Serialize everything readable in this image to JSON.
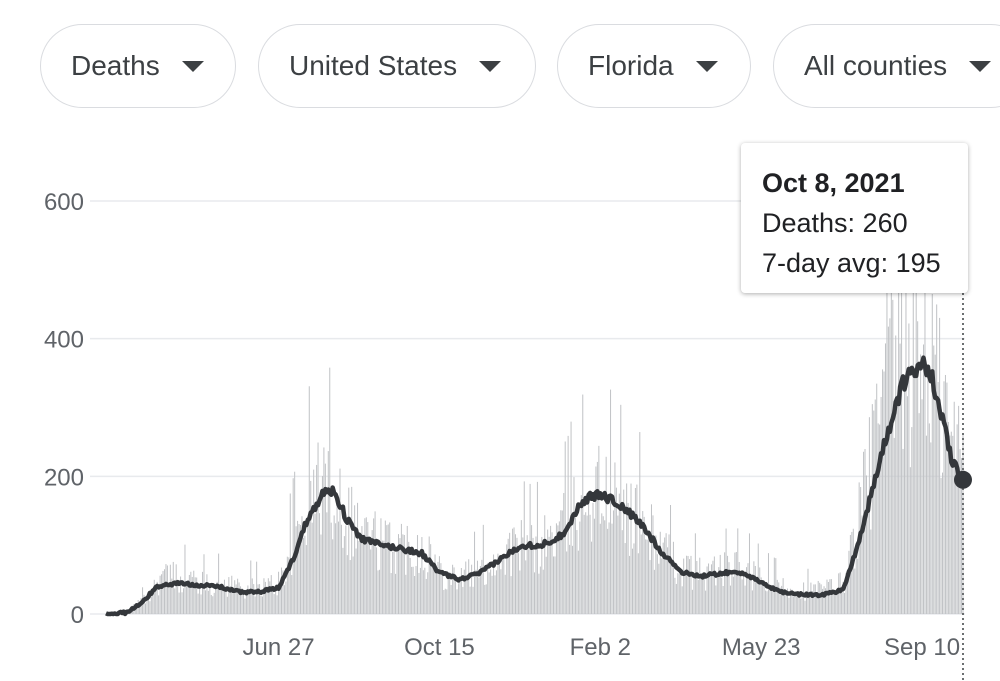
{
  "filters": {
    "metric": "Deaths",
    "country": "United States",
    "state": "Florida",
    "county": "All counties"
  },
  "tooltip": {
    "date": "Oct 8, 2021",
    "deaths_line": "Deaths: 260",
    "avg_line": "7-day avg: 195"
  },
  "colors": {
    "bars": "#c1c3c6",
    "line": "#34373b",
    "gridline": "#e8eaed",
    "axis_text": "#5f6368"
  },
  "chart_data": {
    "type": "bar",
    "title": "",
    "xlabel": "",
    "ylabel": "",
    "ylim": [
      0,
      600
    ],
    "y_ticks": [
      0,
      200,
      400,
      600
    ],
    "x_tick_labels": [
      {
        "label": "Jun 27",
        "date": "2020-06-27"
      },
      {
        "label": "Oct 15",
        "date": "2020-10-15"
      },
      {
        "label": "Feb 2",
        "date": "2021-02-02"
      },
      {
        "label": "May 23",
        "date": "2021-05-23"
      },
      {
        "label": "Sep 10",
        "date": "2021-09-10"
      }
    ],
    "start_date": "2020-03-01",
    "end_date": "2021-10-08",
    "series": [
      {
        "name": "Deaths",
        "kind": "bar",
        "note": "daily values, weekly anchors (date, approx. deaths)",
        "anchors": [
          [
            "2020-03-01",
            0
          ],
          [
            "2020-03-15",
            3
          ],
          [
            "2020-03-29",
            25
          ],
          [
            "2020-04-08",
            55
          ],
          [
            "2020-04-22",
            55
          ],
          [
            "2020-05-06",
            45
          ],
          [
            "2020-05-20",
            45
          ],
          [
            "2020-06-03",
            40
          ],
          [
            "2020-06-17",
            40
          ],
          [
            "2020-06-27",
            45
          ],
          [
            "2020-07-08",
            110
          ],
          [
            "2020-07-18",
            170
          ],
          [
            "2020-07-28",
            195
          ],
          [
            "2020-08-05",
            185
          ],
          [
            "2020-08-13",
            145
          ],
          [
            "2020-08-24",
            120
          ],
          [
            "2020-09-07",
            100
          ],
          [
            "2020-09-21",
            100
          ],
          [
            "2020-10-05",
            95
          ],
          [
            "2020-10-15",
            65
          ],
          [
            "2020-10-29",
            55
          ],
          [
            "2020-11-12",
            65
          ],
          [
            "2020-11-26",
            85
          ],
          [
            "2020-12-10",
            100
          ],
          [
            "2020-12-24",
            100
          ],
          [
            "2021-01-07",
            125
          ],
          [
            "2021-01-21",
            170
          ],
          [
            "2021-02-02",
            180
          ],
          [
            "2021-02-16",
            160
          ],
          [
            "2021-03-02",
            135
          ],
          [
            "2021-03-16",
            95
          ],
          [
            "2021-03-30",
            65
          ],
          [
            "2021-04-13",
            60
          ],
          [
            "2021-04-27",
            65
          ],
          [
            "2021-05-11",
            65
          ],
          [
            "2021-05-23",
            50
          ],
          [
            "2021-06-06",
            40
          ],
          [
            "2021-06-20",
            35
          ],
          [
            "2021-07-04",
            35
          ],
          [
            "2021-07-18",
            45
          ],
          [
            "2021-07-28",
            130
          ],
          [
            "2021-08-07",
            230
          ],
          [
            "2021-08-17",
            330
          ],
          [
            "2021-08-27",
            380
          ],
          [
            "2021-09-04",
            370
          ],
          [
            "2021-09-10",
            400
          ],
          [
            "2021-09-17",
            360
          ],
          [
            "2021-09-24",
            300
          ],
          [
            "2021-10-01",
            240
          ],
          [
            "2021-10-08",
            260
          ]
        ]
      },
      {
        "name": "7-day avg",
        "kind": "line",
        "note": "anchor points (date, approx. 7-day average)",
        "anchors": [
          [
            "2020-03-01",
            0
          ],
          [
            "2020-03-15",
            2
          ],
          [
            "2020-03-25",
            15
          ],
          [
            "2020-04-05",
            40
          ],
          [
            "2020-04-19",
            45
          ],
          [
            "2020-05-03",
            42
          ],
          [
            "2020-05-17",
            40
          ],
          [
            "2020-05-31",
            32
          ],
          [
            "2020-06-14",
            32
          ],
          [
            "2020-06-27",
            38
          ],
          [
            "2020-07-07",
            80
          ],
          [
            "2020-07-17",
            140
          ],
          [
            "2020-07-27",
            175
          ],
          [
            "2020-08-04",
            180
          ],
          [
            "2020-08-12",
            140
          ],
          [
            "2020-08-22",
            110
          ],
          [
            "2020-09-05",
            100
          ],
          [
            "2020-09-19",
            95
          ],
          [
            "2020-10-03",
            88
          ],
          [
            "2020-10-15",
            60
          ],
          [
            "2020-10-29",
            50
          ],
          [
            "2020-11-12",
            60
          ],
          [
            "2020-11-26",
            80
          ],
          [
            "2020-12-10",
            100
          ],
          [
            "2020-12-24",
            100
          ],
          [
            "2021-01-07",
            115
          ],
          [
            "2021-01-21",
            165
          ],
          [
            "2021-02-02",
            175
          ],
          [
            "2021-02-16",
            158
          ],
          [
            "2021-03-02",
            130
          ],
          [
            "2021-03-16",
            90
          ],
          [
            "2021-03-30",
            60
          ],
          [
            "2021-04-13",
            55
          ],
          [
            "2021-04-27",
            60
          ],
          [
            "2021-05-11",
            60
          ],
          [
            "2021-05-23",
            45
          ],
          [
            "2021-06-06",
            32
          ],
          [
            "2021-06-20",
            28
          ],
          [
            "2021-07-04",
            28
          ],
          [
            "2021-07-18",
            35
          ],
          [
            "2021-07-28",
            100
          ],
          [
            "2021-08-07",
            180
          ],
          [
            "2021-08-17",
            260
          ],
          [
            "2021-08-27",
            330
          ],
          [
            "2021-09-04",
            350
          ],
          [
            "2021-09-10",
            375
          ],
          [
            "2021-09-17",
            340
          ],
          [
            "2021-09-24",
            280
          ],
          [
            "2021-10-01",
            220
          ],
          [
            "2021-10-08",
            195
          ]
        ]
      }
    ],
    "highlight": {
      "date": "2021-10-08",
      "deaths": 260,
      "avg": 195
    }
  }
}
